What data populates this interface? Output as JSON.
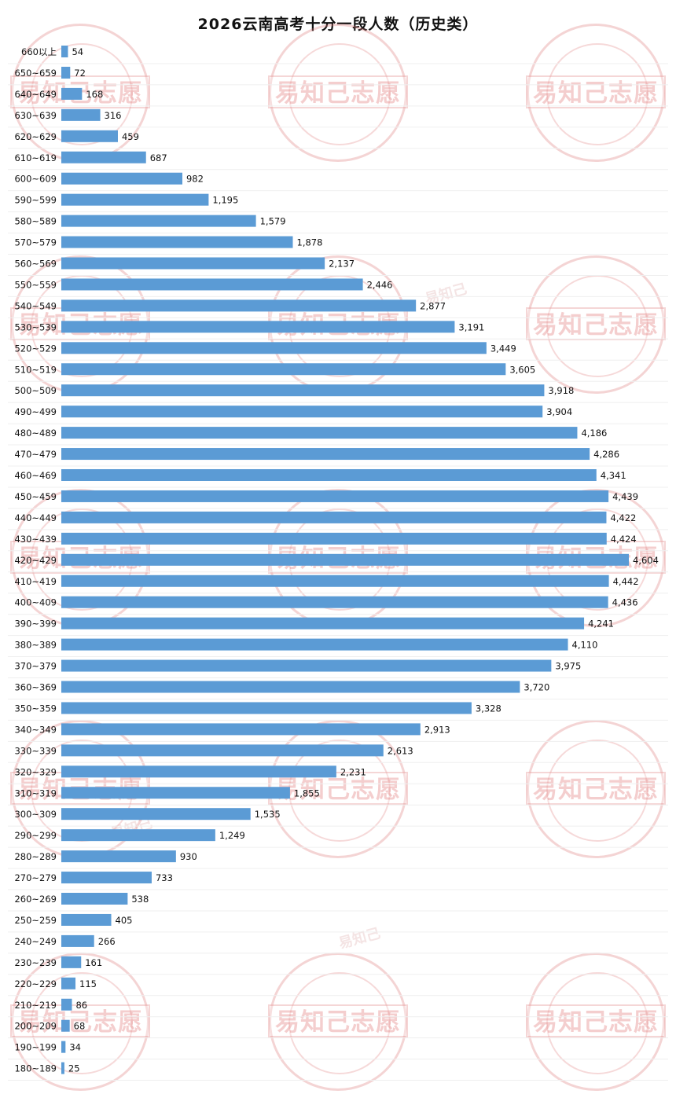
{
  "chart_data": {
    "type": "bar",
    "orientation": "horizontal",
    "title": "2026云南高考十分一段人数（历史类）",
    "categories": [
      "660以上",
      "650~659",
      "640~649",
      "630~639",
      "620~629",
      "610~619",
      "600~609",
      "590~599",
      "580~589",
      "570~579",
      "560~569",
      "550~559",
      "540~549",
      "530~539",
      "520~529",
      "510~519",
      "500~509",
      "490~499",
      "480~489",
      "470~479",
      "460~469",
      "450~459",
      "440~449",
      "430~439",
      "420~429",
      "410~419",
      "400~409",
      "390~399",
      "380~389",
      "370~379",
      "360~369",
      "350~359",
      "340~349",
      "330~339",
      "320~329",
      "310~319",
      "300~309",
      "290~299",
      "280~289",
      "270~279",
      "260~269",
      "250~259",
      "240~249",
      "230~239",
      "220~229",
      "210~219",
      "200~209",
      "190~199",
      "180~189"
    ],
    "values": [
      54,
      72,
      168,
      316,
      459,
      687,
      982,
      1195,
      1579,
      1878,
      2137,
      2446,
      2877,
      3191,
      3449,
      3605,
      3918,
      3904,
      4186,
      4286,
      4341,
      4439,
      4422,
      4424,
      4604,
      4442,
      4436,
      4241,
      4110,
      3975,
      3720,
      3328,
      2913,
      2613,
      2231,
      1855,
      1535,
      1249,
      930,
      733,
      538,
      405,
      266,
      161,
      115,
      86,
      68,
      34,
      25
    ],
    "value_labels": [
      "54",
      "72",
      "168",
      "316",
      "459",
      "687",
      "982",
      "1,195",
      "1,579",
      "1,878",
      "2,137",
      "2,446",
      "2,877",
      "3,191",
      "3,449",
      "3,605",
      "3,918",
      "3,904",
      "4,186",
      "4,286",
      "4,341",
      "4,439",
      "4,422",
      "4,424",
      "4,604",
      "4,442",
      "4,436",
      "4,241",
      "4,110",
      "3,975",
      "3,720",
      "3,328",
      "2,913",
      "2,613",
      "2,231",
      "1,855",
      "1,535",
      "1,249",
      "930",
      "733",
      "538",
      "405",
      "266",
      "161",
      "115",
      "86",
      "68",
      "34",
      "25"
    ],
    "bar_color": "#5b9bd5",
    "xlim": [
      0,
      4604
    ],
    "grid": false,
    "legend": "none"
  },
  "watermark": {
    "text": "易知己志愿",
    "color": "#de7878"
  }
}
